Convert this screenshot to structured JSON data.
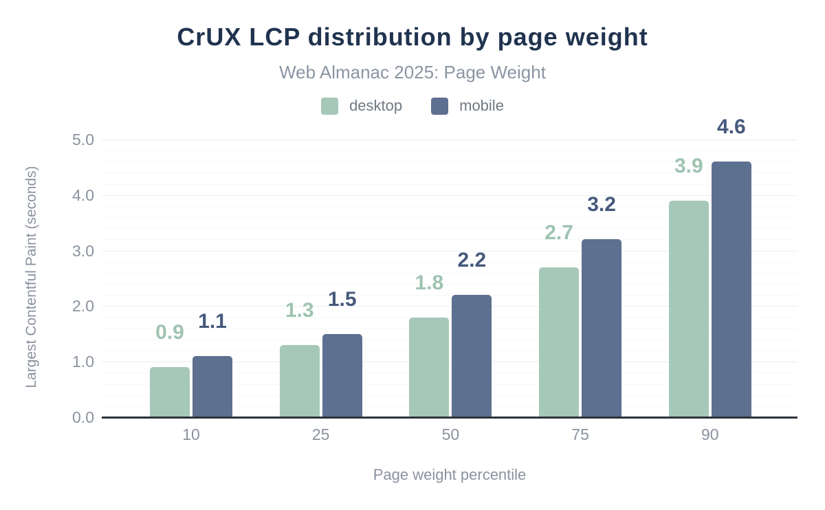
{
  "chart_data": {
    "type": "bar",
    "title": "CrUX LCP distribution by page weight",
    "subtitle": "Web Almanac 2025: Page Weight",
    "categories": [
      "10",
      "25",
      "50",
      "75",
      "90"
    ],
    "series": [
      {
        "name": "desktop",
        "values": [
          0.9,
          1.3,
          1.8,
          2.7,
          3.9
        ],
        "color": "#a6c8b8",
        "label_color": "#9fc3b1"
      },
      {
        "name": "mobile",
        "values": [
          1.1,
          1.5,
          2.2,
          3.2,
          4.6
        ],
        "color": "#5e7090",
        "label_color": "#46597c"
      }
    ],
    "xlabel": "Page weight percentile",
    "ylabel": "Largest Contentful Paint (seconds)",
    "ylim": [
      0,
      5
    ],
    "y_major_step": 1.0,
    "y_minor_step": 0.2,
    "y_tick_labels": [
      "0.0",
      "1.0",
      "2.0",
      "3.0",
      "4.0",
      "5.0"
    ],
    "grid": true,
    "legend_position": "top",
    "data_labels": true
  },
  "style": {
    "background": "#ffffff",
    "title_color": "#20334f",
    "subtitle_color": "#8b95a3",
    "legend_text_color": "#6f7983",
    "tick_text_color": "#8a929e",
    "baseline_color": "#2e3339",
    "grid_minor_color": "#f6f7f9",
    "grid_major_color": "#ebedf0"
  }
}
